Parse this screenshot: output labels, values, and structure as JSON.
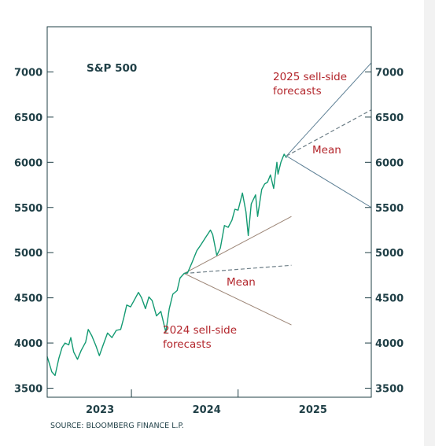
{
  "chart_data": {
    "type": "line",
    "title": "S&P 500",
    "source": "SOURCE: BLOOMBERG FINANCE L.P.",
    "x_domain": [
      "2022-09-15",
      "2025-10-01"
    ],
    "ylim": [
      3400,
      7500
    ],
    "yticks": [
      3500,
      4000,
      4500,
      5000,
      5500,
      6000,
      6500,
      7000
    ],
    "yticks_left": [
      "3500",
      "4000",
      "4500",
      "5000",
      "5500",
      "6000",
      "6500",
      "7000"
    ],
    "yticks_right": [
      "3500",
      "4000",
      "4500",
      "5000",
      "5500",
      "6000",
      "6500",
      "7000"
    ],
    "xticks": [
      "2023-07-01",
      "2024-07-01"
    ],
    "year_labels": [
      {
        "label": "2023",
        "date": "2023-03-15"
      },
      {
        "label": "2024",
        "date": "2024-03-15"
      },
      {
        "label": "2025",
        "date": "2025-03-15"
      }
    ],
    "colors": {
      "price": "#139a72",
      "forecast2025": "#5d7f95",
      "forecast2024": "#9c8576",
      "axis": "#1f3f46",
      "annotation": "#b3262c",
      "dashed": "#6e7f88"
    },
    "series": [
      {
        "name": "",
        "points": [
          [
            "2022-09-15",
            3850
          ],
          [
            "2022-10-01",
            3680
          ],
          [
            "2022-10-12",
            3640
          ],
          [
            "2022-10-25",
            3830
          ],
          [
            "2022-11-05",
            3950
          ],
          [
            "2022-11-15",
            4000
          ],
          [
            "2022-11-28",
            3980
          ],
          [
            "2022-12-05",
            4060
          ],
          [
            "2022-12-15",
            3900
          ],
          [
            "2022-12-28",
            3820
          ],
          [
            "2023-01-10",
            3920
          ],
          [
            "2023-01-25",
            4010
          ],
          [
            "2023-02-03",
            4150
          ],
          [
            "2023-02-15",
            4080
          ],
          [
            "2023-03-01",
            3970
          ],
          [
            "2023-03-13",
            3860
          ],
          [
            "2023-03-25",
            3970
          ],
          [
            "2023-04-10",
            4110
          ],
          [
            "2023-04-25",
            4060
          ],
          [
            "2023-05-10",
            4140
          ],
          [
            "2023-05-25",
            4150
          ],
          [
            "2023-06-05",
            4280
          ],
          [
            "2023-06-15",
            4420
          ],
          [
            "2023-06-28",
            4400
          ],
          [
            "2023-07-10",
            4470
          ],
          [
            "2023-07-25",
            4560
          ],
          [
            "2023-08-05",
            4500
          ],
          [
            "2023-08-18",
            4380
          ],
          [
            "2023-08-30",
            4510
          ],
          [
            "2023-09-10",
            4470
          ],
          [
            "2023-09-25",
            4300
          ],
          [
            "2023-10-10",
            4350
          ],
          [
            "2023-10-27",
            4120
          ],
          [
            "2023-11-08",
            4380
          ],
          [
            "2023-11-20",
            4540
          ],
          [
            "2023-12-05",
            4580
          ],
          [
            "2023-12-15",
            4720
          ],
          [
            "2023-12-29",
            4770
          ],
          [
            "2024-01-10",
            4780
          ],
          [
            "2024-01-25",
            4890
          ],
          [
            "2024-02-10",
            5020
          ],
          [
            "2024-02-25",
            5090
          ],
          [
            "2024-03-10",
            5160
          ],
          [
            "2024-03-28",
            5250
          ],
          [
            "2024-04-05",
            5200
          ],
          [
            "2024-04-19",
            4970
          ],
          [
            "2024-05-01",
            5050
          ],
          [
            "2024-05-15",
            5300
          ],
          [
            "2024-05-28",
            5280
          ],
          [
            "2024-06-10",
            5360
          ],
          [
            "2024-06-20",
            5480
          ],
          [
            "2024-07-01",
            5470
          ],
          [
            "2024-07-16",
            5660
          ],
          [
            "2024-07-28",
            5450
          ],
          [
            "2024-08-05",
            5190
          ],
          [
            "2024-08-15",
            5540
          ],
          [
            "2024-08-30",
            5640
          ],
          [
            "2024-09-06",
            5400
          ],
          [
            "2024-09-20",
            5700
          ],
          [
            "2024-09-30",
            5760
          ],
          [
            "2024-10-10",
            5780
          ],
          [
            "2024-10-20",
            5860
          ],
          [
            "2024-10-31",
            5710
          ],
          [
            "2024-11-11",
            6000
          ],
          [
            "2024-11-15",
            5870
          ],
          [
            "2024-11-25",
            6000
          ],
          [
            "2024-12-06",
            6090
          ],
          [
            "2024-12-14",
            6050
          ]
        ]
      }
    ],
    "forecast_2025": {
      "origin": [
        "2024-12-14",
        6070
      ],
      "high": [
        "2025-10-01",
        7100
      ],
      "low": [
        "2025-10-01",
        5500
      ],
      "mean": [
        "2025-10-01",
        6580
      ],
      "label_lines": [
        "2025 sell-side",
        "forecasts"
      ],
      "mean_label": "Mean"
    },
    "forecast_2024": {
      "origin": [
        "2023-12-29",
        4770
      ],
      "high": [
        "2024-12-31",
        5400
      ],
      "low": [
        "2024-12-31",
        4200
      ],
      "mean": [
        "2024-12-31",
        4860
      ],
      "label_lines": [
        "2024 sell-side",
        "forecasts"
      ],
      "mean_label": "Mean"
    }
  }
}
